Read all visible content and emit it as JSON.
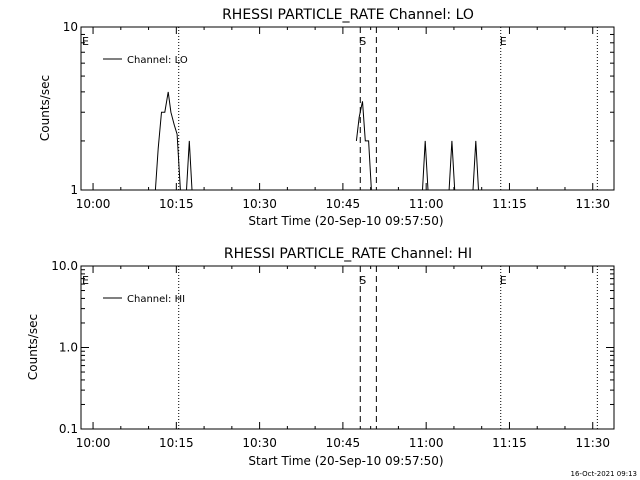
{
  "chart_data": [
    {
      "type": "line",
      "title": "RHESSI PARTICLE_RATE Channel: LO",
      "xlabel": "Start Time (20-Sep-10 09:57:50)",
      "ylabel": "Counts/sec",
      "yscale": "log",
      "ylim": [
        1,
        10
      ],
      "y_ticks": [
        1,
        10
      ],
      "y_tick_labels": [
        "1",
        "10"
      ],
      "xlim_minutes": [
        0,
        96
      ],
      "x_tick_labels": [
        "10:00",
        "10:15",
        "10:30",
        "10:45",
        "11:00",
        "11:15",
        "11:30"
      ],
      "x_tick_minutes": [
        2.17,
        17.17,
        32.17,
        47.17,
        62.17,
        77.17,
        92.17
      ],
      "legend": "Channel: LO",
      "legend_position": "top-left",
      "markers": [
        {
          "label": "E",
          "style": "dotted",
          "x_minute": 0
        },
        {
          "label": "",
          "style": "dotted",
          "x_minute": 17.6
        },
        {
          "label": "S",
          "style": "dashed",
          "x_minute": 50.3
        },
        {
          "label": "",
          "style": "dashed",
          "x_minute": 53.2
        },
        {
          "label": "E",
          "style": "dotted",
          "x_minute": 75.6
        },
        {
          "label": "",
          "style": "dotted",
          "x_minute": 93.0
        }
      ],
      "series": [
        {
          "name": "Channel: LO",
          "x_minutes": [
            13.4,
            13.9,
            14.5,
            15.1,
            15.7,
            16.2,
            16.8,
            17.3,
            17.9,
            18.4,
            19.0,
            19.5,
            20.0,
            20.6,
            21.1,
            21.6,
            49.6,
            50.1,
            50.7,
            51.2,
            51.8,
            52.3,
            52.9,
            61.5,
            62.0,
            62.5,
            63.1,
            66.3,
            66.8,
            67.3,
            67.9,
            70.6,
            71.1,
            71.6,
            72.2
          ],
          "values": [
            1.0,
            1.8,
            3.0,
            3.0,
            4.0,
            3.0,
            2.5,
            2.2,
            1.0,
            1.0,
            1.0,
            2.0,
            1.0,
            1.0,
            1.0,
            1.0,
            2.0,
            2.8,
            3.5,
            2.0,
            2.0,
            1.0,
            1.0,
            1.0,
            2.0,
            1.0,
            1.0,
            1.0,
            2.0,
            1.0,
            1.0,
            1.0,
            2.0,
            1.0,
            1.0
          ]
        }
      ]
    },
    {
      "type": "line",
      "title": "RHESSI PARTICLE_RATE Channel: HI",
      "xlabel": "Start Time (20-Sep-10 09:57:50)",
      "ylabel": "Counts/sec",
      "yscale": "log",
      "ylim": [
        0.1,
        10
      ],
      "y_ticks": [
        0.1,
        1,
        10
      ],
      "y_tick_labels": [
        "0.1",
        "1.0",
        "10.0"
      ],
      "xlim_minutes": [
        0,
        96
      ],
      "x_tick_labels": [
        "10:00",
        "10:15",
        "10:30",
        "10:45",
        "11:00",
        "11:15",
        "11:30"
      ],
      "x_tick_minutes": [
        2.17,
        17.17,
        32.17,
        47.17,
        62.17,
        77.17,
        92.17
      ],
      "legend": "Channel: HI",
      "legend_position": "top-left",
      "markers": [
        {
          "label": "E",
          "style": "dotted",
          "x_minute": 0
        },
        {
          "label": "",
          "style": "dotted",
          "x_minute": 17.6
        },
        {
          "label": "S",
          "style": "dashed",
          "x_minute": 50.3
        },
        {
          "label": "",
          "style": "dashed",
          "x_minute": 53.2
        },
        {
          "label": "E",
          "style": "dotted",
          "x_minute": 75.6
        },
        {
          "label": "",
          "style": "dotted",
          "x_minute": 93.0
        }
      ],
      "series": [
        {
          "name": "Channel: HI",
          "x_minutes": [],
          "values": []
        }
      ]
    }
  ],
  "footer": {
    "timestamp": "16-Oct-2021 09:13"
  }
}
